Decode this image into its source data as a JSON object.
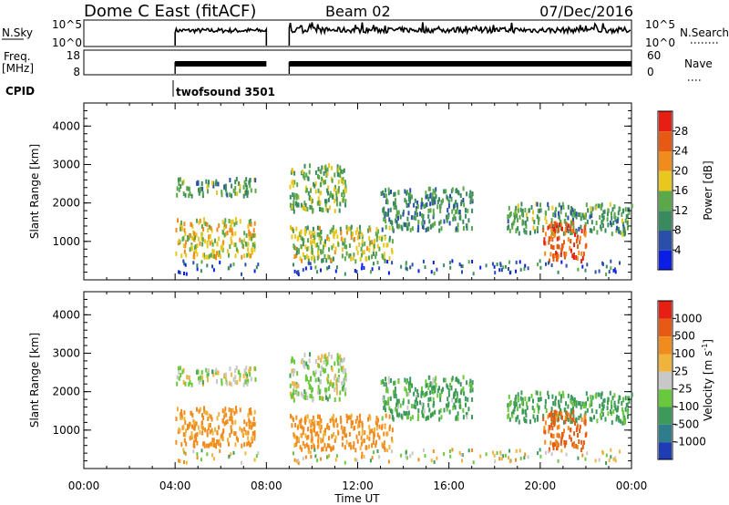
{
  "header": {
    "station": "Dome C East (fitACF)",
    "beam": "Beam 02",
    "date": "07/Dec/2016"
  },
  "panels": {
    "nsky": {
      "left_label": "N.Sky",
      "left_ticks": [
        "10^5",
        "10^0"
      ],
      "right_ticks": [
        "10^5",
        "10^0"
      ],
      "right_label": "N.Search"
    },
    "freq": {
      "left_label_line1": "Freq.",
      "left_label_line2": "[MHz]",
      "left_ticks": [
        "18",
        "8"
      ],
      "right_ticks": [
        "60",
        "0"
      ],
      "right_label": "Nave"
    },
    "cpid": {
      "label": "CPID",
      "program": "twofsound 3501"
    }
  },
  "axes": {
    "x_ticks": [
      "00:00",
      "04:00",
      "08:00",
      "12:00",
      "16:00",
      "20:00",
      "00:00"
    ],
    "x_label": "Time UT",
    "y_ticks": [
      "1000",
      "2000",
      "3000",
      "4000"
    ],
    "y_label": "Slant Range [km]"
  },
  "colorbars": {
    "power": {
      "label": "Power [dB]",
      "ticks": [
        "4",
        "8",
        "12",
        "16",
        "20",
        "24",
        "28"
      ],
      "colors": [
        "#0a1ee6",
        "#2a4fa8",
        "#3a8a60",
        "#5aa84a",
        "#e8c81e",
        "#f08c1e",
        "#e65a14",
        "#e61e14"
      ]
    },
    "velocity": {
      "label": "Velocity [m s",
      "label_sup": "-1",
      "label_end": "]",
      "ticks": [
        "1000",
        "500",
        "100",
        "25",
        "-25",
        "-100",
        "-500",
        "-1000"
      ],
      "colors": [
        "#1e3cb4",
        "#2e7d8c",
        "#3c9a5a",
        "#6ac83c",
        "#c8c8c8",
        "#f0b43c",
        "#f08c1e",
        "#e65a14",
        "#e61e14"
      ]
    }
  },
  "chart_data": {
    "type": "heatmap",
    "x_range_hours": [
      0,
      24
    ],
    "y_range_km": [
      0,
      4600
    ],
    "data_gap_hours": [
      8.0,
      9.0
    ],
    "coverage_start_hour": 4.0,
    "frequency_mhz": 10,
    "nave": 30,
    "nsky_log": 1.5,
    "nsearch_log": 1.5,
    "scatter_regions": [
      {
        "t0": 4.0,
        "t1": 7.5,
        "r0": 2200,
        "r1": 2650,
        "power_db": 12,
        "velocity": 25
      },
      {
        "t0": 4.0,
        "t1": 7.5,
        "r0": 600,
        "r1": 1600,
        "power_db": 18,
        "velocity": -200
      },
      {
        "t0": 9.0,
        "t1": 11.5,
        "r0": 1800,
        "r1": 3000,
        "power_db": 14,
        "velocity": 25
      },
      {
        "t0": 9.0,
        "t1": 13.5,
        "r0": 500,
        "r1": 1400,
        "power_db": 16,
        "velocity": -200
      },
      {
        "t0": 13.0,
        "t1": 17.0,
        "r0": 1300,
        "r1": 2400,
        "power_db": 10,
        "velocity": 150
      },
      {
        "t0": 18.5,
        "t1": 24.0,
        "r0": 1200,
        "r1": 2000,
        "power_db": 12,
        "velocity": 200
      },
      {
        "t0": 20.0,
        "t1": 22.0,
        "r0": 500,
        "r1": 1500,
        "power_db": 26,
        "velocity": -600
      }
    ]
  }
}
